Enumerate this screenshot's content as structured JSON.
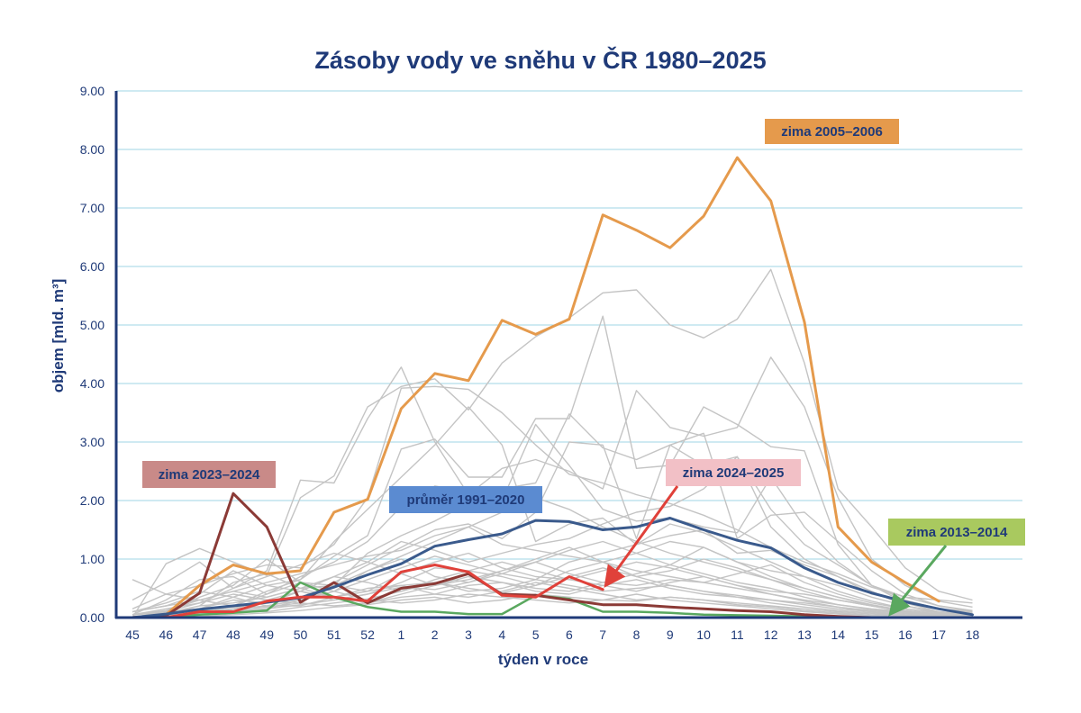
{
  "chart_data": {
    "type": "line",
    "title": "Zásoby vody ve sněhu v ČR 1980–2025",
    "xlabel": "týden v roce",
    "ylabel": "objem [mld. m³]",
    "ylim": [
      0,
      9
    ],
    "yticks": [
      "0.00",
      "1.00",
      "2.00",
      "3.00",
      "4.00",
      "5.00",
      "6.00",
      "7.00",
      "8.00",
      "9.00"
    ],
    "categories": [
      "45",
      "46",
      "47",
      "48",
      "49",
      "50",
      "51",
      "52",
      "1",
      "2",
      "3",
      "4",
      "5",
      "6",
      "7",
      "8",
      "9",
      "10",
      "11",
      "12",
      "13",
      "14",
      "15",
      "16",
      "17",
      "18"
    ],
    "grid": true,
    "colors": {
      "axis": "#1f3a78",
      "grid": "#9fd6e6",
      "background_series": "#c4c4c4"
    },
    "series": [
      {
        "name": "zima 2005–2006",
        "color": "#e59a4c",
        "width": 3,
        "values": [
          0.0,
          0.05,
          0.55,
          0.9,
          0.75,
          0.8,
          1.8,
          2.02,
          3.57,
          4.17,
          4.05,
          5.08,
          4.84,
          5.1,
          6.88,
          6.62,
          6.32,
          6.86,
          7.86,
          7.12,
          5.05,
          1.55,
          0.95,
          0.6,
          0.28,
          null
        ]
      },
      {
        "name": "zima 2023–2024",
        "color": "#8b3a36",
        "width": 3,
        "values": [
          0.0,
          0.03,
          0.42,
          2.12,
          1.55,
          0.26,
          0.6,
          0.25,
          0.5,
          0.58,
          0.75,
          0.4,
          0.38,
          0.3,
          0.22,
          0.22,
          0.18,
          0.15,
          0.12,
          0.1,
          0.05,
          0.02,
          0.0,
          0.0,
          0.0,
          0.0
        ]
      },
      {
        "name": "průměr 1991–2020",
        "color": "#3a5a8c",
        "width": 3,
        "values": [
          0.0,
          0.06,
          0.14,
          0.2,
          0.26,
          0.34,
          0.52,
          0.73,
          0.92,
          1.22,
          1.33,
          1.43,
          1.66,
          1.64,
          1.5,
          1.55,
          1.7,
          1.5,
          1.32,
          1.19,
          0.85,
          0.6,
          0.42,
          0.27,
          0.15,
          0.05
        ]
      },
      {
        "name": "zima 2024–2025",
        "color": "#e0413a",
        "width": 3,
        "values": [
          0.0,
          0.0,
          0.1,
          0.1,
          0.28,
          0.35,
          0.35,
          0.28,
          0.78,
          0.9,
          0.78,
          0.38,
          0.35,
          0.7,
          0.48,
          null,
          null,
          null,
          null,
          null,
          null,
          null,
          null,
          null,
          null,
          null
        ]
      },
      {
        "name": "zima 2013–2014",
        "color": "#5aa85f",
        "width": 2.5,
        "values": [
          0.0,
          0.0,
          0.05,
          0.08,
          0.12,
          0.6,
          0.35,
          0.18,
          0.1,
          0.1,
          0.06,
          0.06,
          0.38,
          0.32,
          0.1,
          0.1,
          0.08,
          0.05,
          0.04,
          0.03,
          0.02,
          0.0,
          0.0,
          0.0,
          0.0,
          0.0
        ]
      }
    ],
    "background_series": [
      [
        0.65,
        0.4,
        0.55,
        0.75,
        0.9,
        0.85,
        1.25,
        2.05,
        3.92,
        3.95,
        3.9,
        3.5,
        2.95,
        2.45,
        2.3,
        2.1,
        1.95,
        1.75,
        1.5,
        1.2,
        0.95,
        0.75,
        0.52,
        0.35,
        0.3,
        0.25
      ],
      [
        0.0,
        0.92,
        1.18,
        0.95,
        0.72,
        2.05,
        2.42,
        3.6,
        3.95,
        4.08,
        3.55,
        4.35,
        4.8,
        5.12,
        5.55,
        5.6,
        5.0,
        4.78,
        5.1,
        5.95,
        4.35,
        2.2,
        1.55,
        0.85,
        0.45,
        0.3
      ],
      [
        0.3,
        0.6,
        0.95,
        0.5,
        0.8,
        2.35,
        2.3,
        3.4,
        4.28,
        3.0,
        2.1,
        2.55,
        2.7,
        2.5,
        2.2,
        3.88,
        3.25,
        3.1,
        3.25,
        4.45,
        3.6,
        2.05,
        1.0,
        0.55,
        0.28,
        0.18
      ],
      [
        0.1,
        0.2,
        0.4,
        0.8,
        0.55,
        0.65,
        1.05,
        1.4,
        2.88,
        3.05,
        2.4,
        2.4,
        3.4,
        3.4,
        5.15,
        2.55,
        2.6,
        3.6,
        3.3,
        2.92,
        2.85,
        1.25,
        0.55,
        0.35,
        0.2,
        0.1
      ],
      [
        0.05,
        0.3,
        0.65,
        0.7,
        0.4,
        0.7,
        0.95,
        1.3,
        1.9,
        2.25,
        2.15,
        2.0,
        3.3,
        2.6,
        1.85,
        1.65,
        1.7,
        1.55,
        1.45,
        2.4,
        1.55,
        0.95,
        0.55,
        0.25,
        0.1,
        0.05
      ],
      [
        0.0,
        0.1,
        0.35,
        0.55,
        1.0,
        0.6,
        0.55,
        1.1,
        1.4,
        1.65,
        1.95,
        2.2,
        2.3,
        3.48,
        2.9,
        2.7,
        2.95,
        2.6,
        2.75,
        1.55,
        1.0,
        0.7,
        0.45,
        0.2,
        0.08,
        0.05
      ],
      [
        0.05,
        0.15,
        0.25,
        0.4,
        0.3,
        0.25,
        0.6,
        0.9,
        1.2,
        1.5,
        1.6,
        1.35,
        1.8,
        3.0,
        2.95,
        1.35,
        2.95,
        3.15,
        1.35,
        1.75,
        1.8,
        1.3,
        0.8,
        0.4,
        0.2,
        0.12
      ],
      [
        0.15,
        0.4,
        0.3,
        0.2,
        0.45,
        0.65,
        1.3,
        1.85,
        2.4,
        2.95,
        3.6,
        2.95,
        1.3,
        1.6,
        1.7,
        1.25,
        1.4,
        1.5,
        1.1,
        1.15,
        0.9,
        0.7,
        0.4,
        0.28,
        0.15,
        0.1
      ],
      [
        0.0,
        0.05,
        0.15,
        0.3,
        0.25,
        0.45,
        0.7,
        0.95,
        1.3,
        1.15,
        0.95,
        1.1,
        1.25,
        1.35,
        1.6,
        1.8,
        1.9,
        2.2,
        2.75,
        1.85,
        1.25,
        0.9,
        0.55,
        0.3,
        0.15,
        0.08
      ],
      [
        0.05,
        0.12,
        0.3,
        0.45,
        0.6,
        0.75,
        0.9,
        1.05,
        1.15,
        1.4,
        1.55,
        1.25,
        1.15,
        1.05,
        0.95,
        1.1,
        1.3,
        1.2,
        0.95,
        0.8,
        0.7,
        0.55,
        0.35,
        0.2,
        0.1,
        0.05
      ],
      [
        0.0,
        0.08,
        0.2,
        0.25,
        0.35,
        0.5,
        0.55,
        0.45,
        0.75,
        0.95,
        1.1,
        0.85,
        0.7,
        0.65,
        0.8,
        0.95,
        0.85,
        0.7,
        0.55,
        0.45,
        0.4,
        0.3,
        0.2,
        0.12,
        0.06,
        0.03
      ],
      [
        0.1,
        0.25,
        0.45,
        0.35,
        0.2,
        0.3,
        0.45,
        0.8,
        1.0,
        0.7,
        0.6,
        0.8,
        0.95,
        0.75,
        0.6,
        0.55,
        0.65,
        0.6,
        0.5,
        0.4,
        0.3,
        0.22,
        0.15,
        0.1,
        0.05,
        0.02
      ],
      [
        0.0,
        0.03,
        0.1,
        0.15,
        0.2,
        0.2,
        0.35,
        0.5,
        0.55,
        0.6,
        0.45,
        0.5,
        0.65,
        0.55,
        0.45,
        0.5,
        0.55,
        0.45,
        0.35,
        0.3,
        0.25,
        0.18,
        0.12,
        0.07,
        0.03,
        0.0
      ],
      [
        0.05,
        0.1,
        0.15,
        0.35,
        0.55,
        0.45,
        0.3,
        0.4,
        0.6,
        0.85,
        0.8,
        0.7,
        0.55,
        0.8,
        0.95,
        0.7,
        0.8,
        1.0,
        0.85,
        0.65,
        0.45,
        0.3,
        0.2,
        0.1,
        0.05,
        0.02
      ],
      [
        0.0,
        0.05,
        0.08,
        0.12,
        0.18,
        0.25,
        0.2,
        0.25,
        0.35,
        0.4,
        0.55,
        0.6,
        0.45,
        0.4,
        0.55,
        0.65,
        0.5,
        0.4,
        0.35,
        0.25,
        0.18,
        0.12,
        0.08,
        0.04,
        0.02,
        0.0
      ],
      [
        0.02,
        0.05,
        0.2,
        0.6,
        0.75,
        0.5,
        0.35,
        0.45,
        0.55,
        0.4,
        0.35,
        0.45,
        0.6,
        0.5,
        0.4,
        0.3,
        0.35,
        0.3,
        0.25,
        0.2,
        0.15,
        0.1,
        0.06,
        0.03,
        0.01,
        0.0
      ],
      [
        0.0,
        0.02,
        0.05,
        0.1,
        0.15,
        0.3,
        0.45,
        0.65,
        0.85,
        1.05,
        0.9,
        0.75,
        0.95,
        1.15,
        1.3,
        1.1,
        0.9,
        0.75,
        0.6,
        0.5,
        0.35,
        0.22,
        0.14,
        0.08,
        0.04,
        0.02
      ],
      [
        0.0,
        0.0,
        0.02,
        0.05,
        0.08,
        0.12,
        0.18,
        0.22,
        0.3,
        0.35,
        0.25,
        0.3,
        0.4,
        0.35,
        0.3,
        0.28,
        0.35,
        0.3,
        0.22,
        0.18,
        0.12,
        0.08,
        0.04,
        0.02,
        0.0,
        0.0
      ],
      [
        0.1,
        0.2,
        0.3,
        0.45,
        0.35,
        0.5,
        0.7,
        0.6,
        0.45,
        0.65,
        0.8,
        0.95,
        0.8,
        0.65,
        0.55,
        0.45,
        0.6,
        0.7,
        0.55,
        0.4,
        0.28,
        0.18,
        0.1,
        0.05,
        0.02,
        0.0
      ],
      [
        0.0,
        0.05,
        0.1,
        0.08,
        0.15,
        0.22,
        0.3,
        0.4,
        0.52,
        0.48,
        0.6,
        0.75,
        0.65,
        0.95,
        1.1,
        1.25,
        1.6,
        1.45,
        1.2,
        0.95,
        0.7,
        0.45,
        0.28,
        0.15,
        0.08,
        0.04
      ],
      [
        0.02,
        0.04,
        0.06,
        0.2,
        0.4,
        0.6,
        0.45,
        0.3,
        0.25,
        0.3,
        0.4,
        0.35,
        0.3,
        0.25,
        0.3,
        0.4,
        0.3,
        0.25,
        0.2,
        0.15,
        0.1,
        0.06,
        0.03,
        0.01,
        0.0,
        0.0
      ],
      [
        0.0,
        0.1,
        0.25,
        0.5,
        0.7,
        0.9,
        1.1,
        0.95,
        0.75,
        0.55,
        0.65,
        0.8,
        1.0,
        1.2,
        0.95,
        0.8,
        0.7,
        0.6,
        0.75,
        0.9,
        0.6,
        0.4,
        0.25,
        0.15,
        0.08,
        0.04
      ],
      [
        0.05,
        0.08,
        0.12,
        0.18,
        0.25,
        0.35,
        0.55,
        0.8,
        1.05,
        1.3,
        1.55,
        1.8,
        2.05,
        1.85,
        1.55,
        1.3,
        1.1,
        0.95,
        0.8,
        0.65,
        0.5,
        0.35,
        0.22,
        0.12,
        0.06,
        0.03
      ],
      [
        0.0,
        0.0,
        0.05,
        0.15,
        0.3,
        0.45,
        0.35,
        0.25,
        0.4,
        0.55,
        0.7,
        0.6,
        0.5,
        0.45,
        0.6,
        0.75,
        0.9,
        1.2,
        0.95,
        0.7,
        0.5,
        0.35,
        0.2,
        0.1,
        0.05,
        0.02
      ],
      [
        0.0,
        0.02,
        0.08,
        0.12,
        0.1,
        0.18,
        0.25,
        0.32,
        0.45,
        0.6,
        0.5,
        0.42,
        0.55,
        0.7,
        0.85,
        0.7,
        0.55,
        0.45,
        0.38,
        0.3,
        0.22,
        0.15,
        0.1,
        0.05,
        0.02,
        0.0
      ]
    ],
    "annotations": [
      {
        "text": "zima 2005–2006",
        "bg": "#e59a4c",
        "color": "#1f3a78"
      },
      {
        "text": "zima 2023–2024",
        "bg": "#c98a88",
        "color": "#1f3a78"
      },
      {
        "text": "průměr 1991–2020",
        "bg": "#5b8bd1",
        "color": "#1f3a78"
      },
      {
        "text": "zima 2024–2025",
        "bg": "#f2c0c6",
        "color": "#1f3a78"
      },
      {
        "text": "zima 2013–2014",
        "bg": "#a9c95f",
        "color": "#1f3a78"
      }
    ]
  }
}
